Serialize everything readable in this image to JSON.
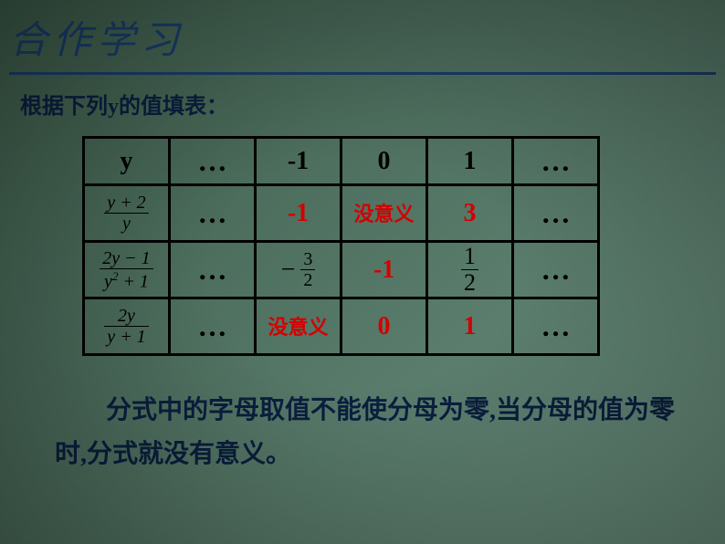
{
  "title": "合作学习",
  "subtitle_prefix": "根据下列",
  "subtitle_var": "y",
  "subtitle_suffix": "的值填表：",
  "table": {
    "header": [
      "y",
      "…",
      "-1",
      "0",
      "1",
      "…"
    ],
    "row1": {
      "expr_num": "y + 2",
      "expr_den": "y",
      "cells": [
        "…",
        "-1",
        "没意义",
        "3",
        "…"
      ]
    },
    "row2": {
      "expr_num": "2y − 1",
      "expr_den": "y² + 1",
      "cells_dots_left": "…",
      "neg_frac_num": "3",
      "neg_frac_den": "2",
      "mid": "-1",
      "frac_num": "1",
      "frac_den": "2",
      "cells_dots_right": "…"
    },
    "row3": {
      "expr_num": "2y",
      "expr_den": "y + 1",
      "cells": [
        "…",
        "没意义",
        "0",
        "1",
        "…"
      ]
    }
  },
  "conclusion": "分式中的字母取值不能使分母为零,当分母的值为零时,分式就没有意义。",
  "colors": {
    "title_color": "#1a3d6b",
    "text_color": "#0a1f3f",
    "red": "#d40000",
    "border": "#000000"
  }
}
